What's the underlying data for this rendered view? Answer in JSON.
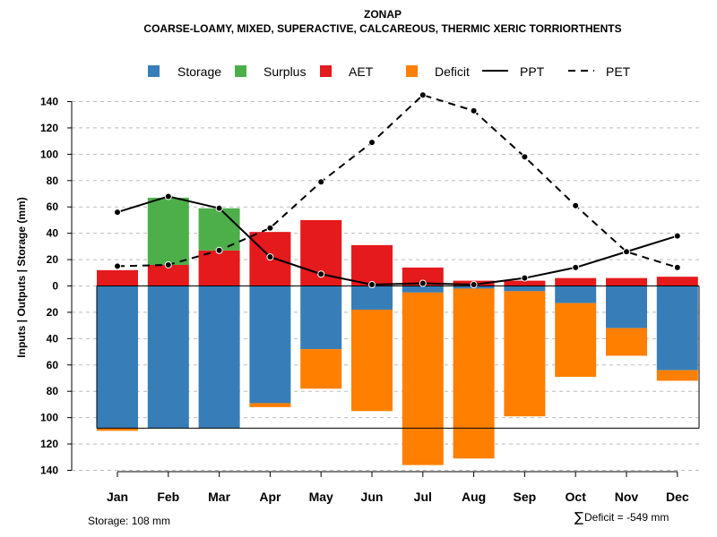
{
  "chart_data": {
    "type": "bar",
    "title": "ZONAP",
    "subtitle": "COARSE-LOAMY, MIXED, SUPERACTIVE, CALCAREOUS, THERMIC XERIC TORRIORTHENTS",
    "ylabel": "Inputs | Outputs | Storage    (mm)",
    "ylim": [
      -140,
      140
    ],
    "yticks": [
      -140,
      -120,
      -100,
      -80,
      -60,
      -40,
      -20,
      0,
      20,
      40,
      60,
      80,
      100,
      120,
      140
    ],
    "ytick_labels": [
      "140",
      "120",
      "100",
      "80",
      "60",
      "40",
      "20",
      "0",
      "20",
      "40",
      "60",
      "80",
      "100",
      "120",
      "140"
    ],
    "grid": true,
    "categories": [
      "Jan",
      "Feb",
      "Mar",
      "Apr",
      "May",
      "Jun",
      "Jul",
      "Aug",
      "Sep",
      "Oct",
      "Nov",
      "Dec"
    ],
    "storage_capacity": 108,
    "series": [
      {
        "name": "Storage",
        "kind": "bar-down",
        "color": "#377EB8",
        "values": [
          108,
          108,
          108,
          89,
          48,
          18,
          5,
          2,
          4,
          13,
          32,
          64
        ]
      },
      {
        "name": "Surplus",
        "kind": "bar-up-stacked",
        "color": "#4DAF4A",
        "values": [
          0,
          51,
          32,
          0,
          0,
          0,
          0,
          0,
          0,
          0,
          0,
          0
        ]
      },
      {
        "name": "AET",
        "kind": "bar-up",
        "color": "#E41A1C",
        "values": [
          12,
          16,
          27,
          41,
          50,
          31,
          14,
          4,
          4,
          6,
          6,
          7
        ]
      },
      {
        "name": "Deficit",
        "kind": "bar-down-stacked",
        "color": "#FF7F00",
        "values": [
          2,
          0,
          0,
          3,
          30,
          77,
          131,
          129,
          95,
          56,
          21,
          8
        ]
      },
      {
        "name": "PPT",
        "kind": "line",
        "dash": "solid",
        "color": "#000000",
        "values": [
          56,
          68,
          59,
          22,
          9,
          1,
          2,
          1,
          6,
          14,
          26,
          38
        ]
      },
      {
        "name": "PET",
        "kind": "line",
        "dash": "dashed",
        "color": "#000000",
        "values": [
          15,
          16,
          27,
          44,
          79,
          109,
          145,
          133,
          98,
          61,
          26,
          14
        ]
      }
    ],
    "legend": [
      "Storage",
      "Surplus",
      "AET",
      "Deficit",
      "PPT",
      "PET"
    ],
    "legend_position": "top",
    "notes": {
      "storage_text": "Storage: 108 mm",
      "deficit_symbol": "∑",
      "deficit_text": "Deficit = -549 mm"
    }
  }
}
